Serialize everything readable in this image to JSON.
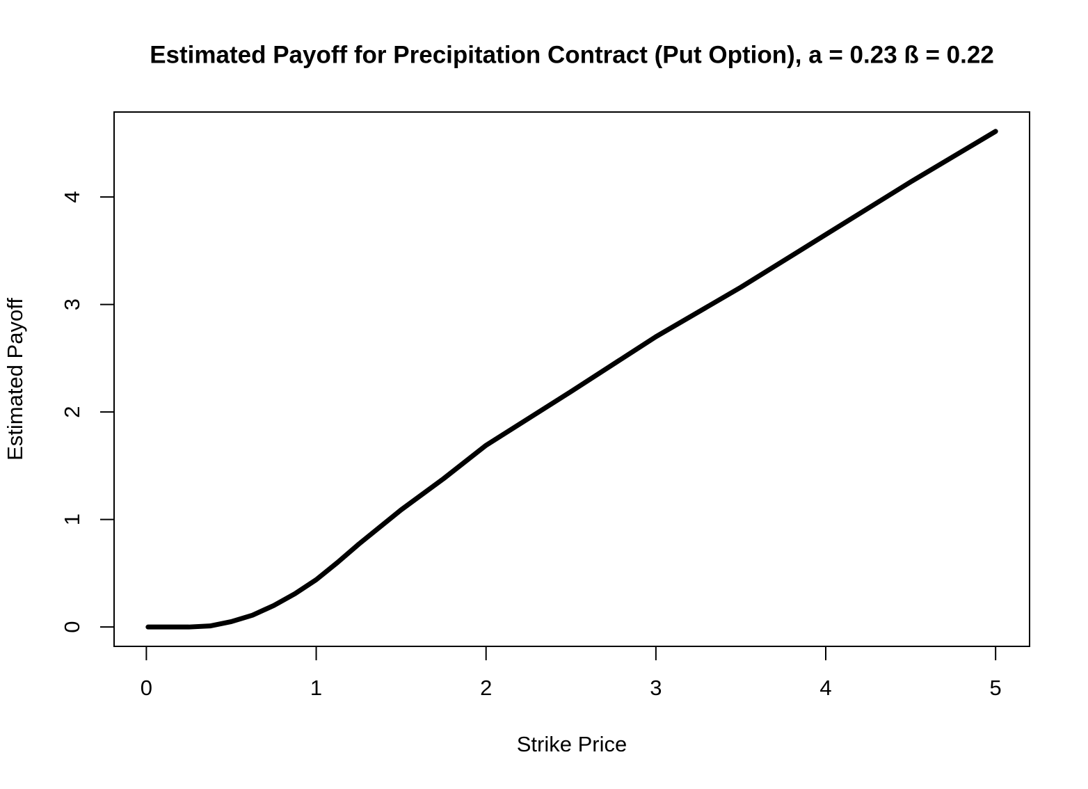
{
  "chart_data": {
    "type": "line",
    "title": "Estimated Payoff for Precipitation Contract (Put Option), a = 0.23 ß = 0.22",
    "x_label": "Strike Price",
    "y_label": "Estimated Payoff",
    "x": [
      0.01,
      0.1,
      0.25,
      0.375,
      0.5,
      0.625,
      0.75,
      0.875,
      1,
      1.125,
      1.25,
      1.5,
      1.75,
      2,
      2.5,
      3,
      3.5,
      4,
      4.5,
      5
    ],
    "series": [
      {
        "name": "Estimated Payoff",
        "color": "#000000",
        "values": [
          0,
          0,
          0,
          0.01,
          0.05,
          0.11,
          0.2,
          0.31,
          0.44,
          0.6,
          0.77,
          1.09,
          1.38,
          1.69,
          2.19,
          2.7,
          3.16,
          3.65,
          4.14,
          4.61
        ]
      }
    ],
    "xlim": [
      -0.19,
      5.2
    ],
    "ylim": [
      -0.18,
      4.79
    ],
    "xticks": [
      0,
      1,
      2,
      3,
      4,
      5
    ],
    "yticks": [
      0,
      1,
      2,
      3,
      4
    ]
  }
}
